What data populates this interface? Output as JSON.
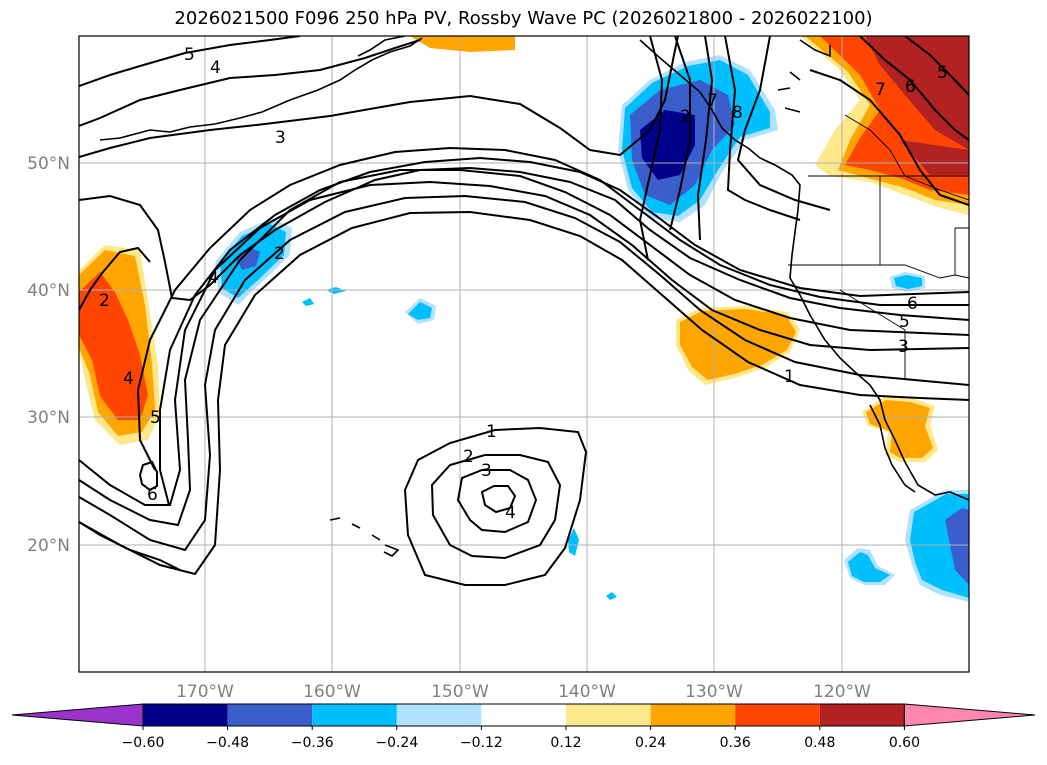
{
  "title": "2026021500 F096 250 hPa PV, Rossby Wave PC (2026021800 - 2026022100)",
  "lat_labels": [
    "50°N",
    "40°N",
    "30°N",
    "20°N"
  ],
  "lon_labels": [
    "170°W",
    "160°W",
    "150°W",
    "140°W",
    "130°W",
    "120°W"
  ],
  "colorbar": {
    "ticks": [
      "−0.60",
      "−0.48",
      "−0.36",
      "−0.24",
      "−0.12",
      "0.12",
      "0.24",
      "0.36",
      "0.48",
      "0.60"
    ],
    "colors": [
      "#9933cc",
      "#00008b",
      "#3a5fcd",
      "#00bfff",
      "#b0e2ff",
      "#ffffff",
      "#fce98a",
      "#ffa500",
      "#ff4500",
      "#b22222",
      "#ff86b0"
    ]
  },
  "contour_labels": [
    "5",
    "4",
    "3",
    "6",
    "5",
    "3",
    "1",
    "1",
    "2",
    "3",
    "4",
    "2",
    "4",
    "5",
    "6",
    "2",
    "4",
    "2",
    "7",
    "8",
    "7",
    "6",
    "5"
  ]
}
